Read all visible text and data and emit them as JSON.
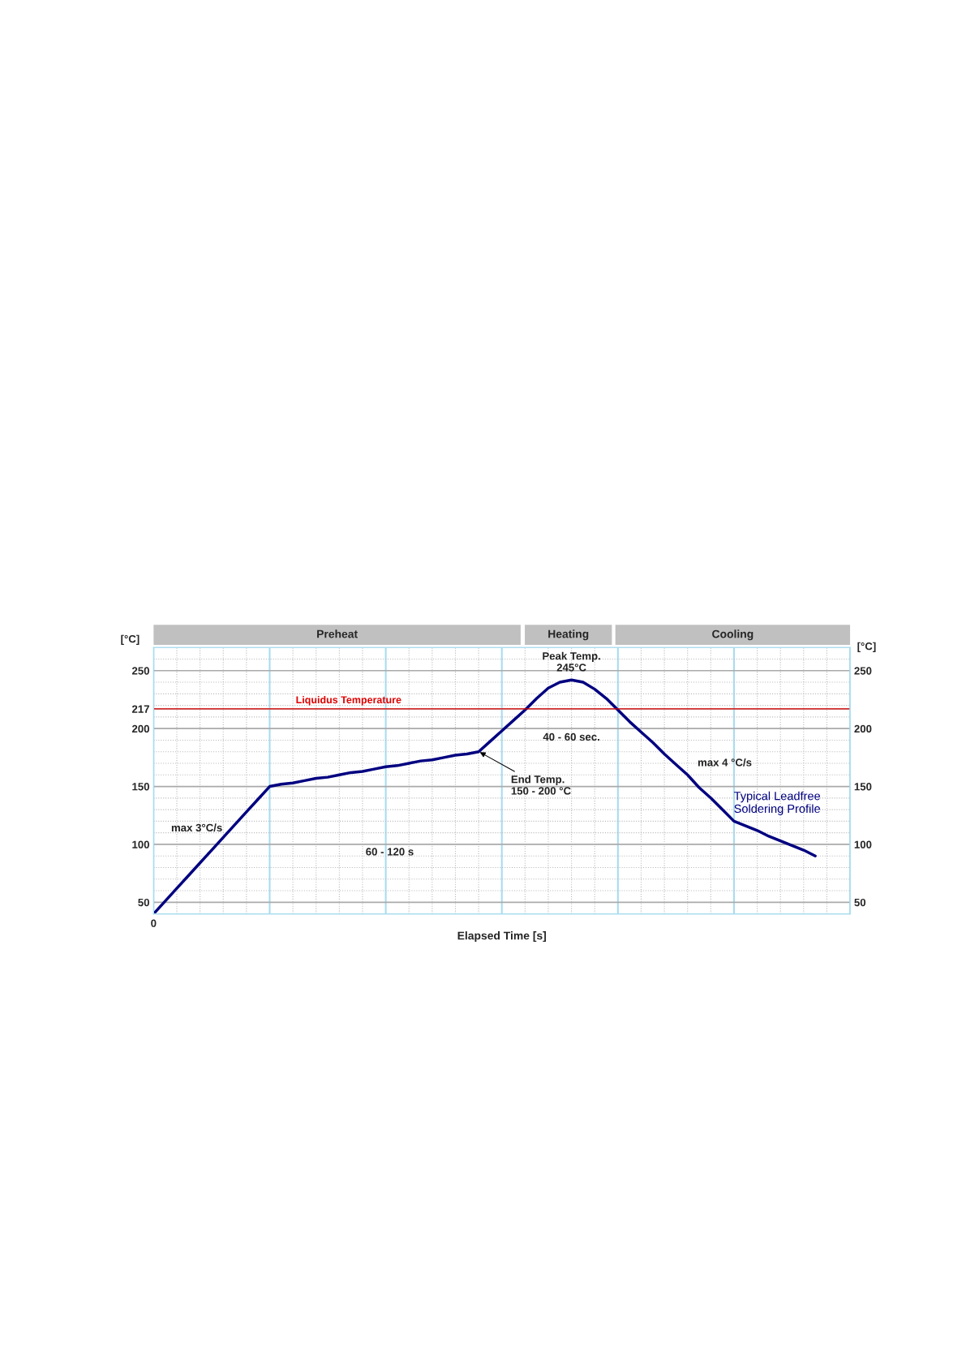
{
  "chart_data": {
    "type": "line",
    "xlabel": "Elapsed Time [s]",
    "ylabel": "[°C]",
    "y2label": "[°C]",
    "categories": [
      null,
      null,
      null,
      null,
      null,
      null,
      null,
      null,
      null,
      null,
      null,
      null,
      null,
      null,
      null,
      null,
      null,
      null,
      null,
      null,
      null,
      null,
      null,
      null,
      null,
      null,
      null,
      null,
      null,
      null,
      null,
      null,
      null,
      null,
      null,
      null,
      null,
      null,
      null,
      null,
      null,
      null,
      null,
      null,
      null,
      null,
      null,
      null,
      null,
      null,
      null,
      null,
      null,
      null,
      null,
      null,
      null,
      null,
      null,
      null,
      null
    ],
    "series": [
      {
        "name": "Typical Leadfree\nSoldering Profile",
        "color": "#000080",
        "values": [
          40,
          51,
          62,
          73,
          84,
          95,
          106,
          117,
          128,
          139,
          150,
          152,
          153,
          155,
          157,
          158,
          160,
          162,
          163,
          165,
          167,
          168,
          170,
          172,
          173,
          175,
          177,
          178,
          180,
          189,
          198,
          207,
          216,
          226,
          235,
          240,
          242,
          240,
          234,
          226,
          216,
          206,
          197,
          188,
          178,
          169,
          160,
          149,
          140,
          130,
          120,
          116,
          112,
          107,
          103,
          99,
          95,
          90,
          null,
          null,
          null
        ]
      }
    ],
    "ylim": [
      40,
      270
    ],
    "yticks": [
      50,
      100,
      150,
      200,
      217,
      250
    ],
    "y2lim": [
      40,
      270
    ],
    "y2ticks": [
      50,
      100,
      150,
      200,
      250
    ],
    "ref_lines": [
      {
        "axis": "y",
        "value": 217,
        "label": "Liquidus Temperature",
        "color": "#e00000"
      }
    ],
    "annotations": [
      "max 3°C/s",
      "60 - 120 s",
      "End Temp.\n150 - 200 °C",
      "Peak Temp.\n245°C",
      "40 - 60 sec.",
      "max 4 °C/s",
      "0",
      "Preheat",
      "Heating",
      "Cooling"
    ],
    "grid": true,
    "legend": false,
    "marker": "none",
    "line_style": "solid"
  }
}
